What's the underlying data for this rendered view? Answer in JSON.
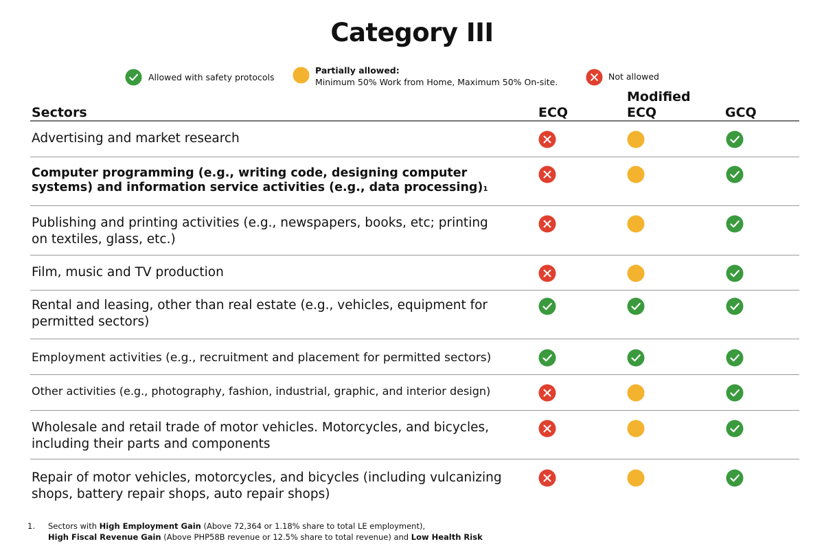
{
  "title": "Category III",
  "legend": {
    "allowed": "Allowed with safety protocols",
    "partial_title": "Partially allowed:",
    "partial_detail": "Minimum 50% Work from Home,  Maximum 50% On-site.",
    "not_allowed": "Not allowed"
  },
  "colors": {
    "allowed": "#3a9a3d",
    "partial": "#f3b32e",
    "not_allowed": "#e0402f"
  },
  "icons": {
    "allowed": "check-circle-icon",
    "partial": "partial-circle-icon",
    "not_allowed": "cross-circle-icon"
  },
  "headers": {
    "sectors": "Sectors",
    "ecq": "ECQ",
    "mecq_line1": "Modified",
    "mecq_line2": "ECQ",
    "gcq": "GCQ"
  },
  "rows": [
    {
      "line1": "Advertising and market research",
      "line2": "",
      "ecq": "not_allowed",
      "mecq": "partial",
      "gcq": "allowed"
    },
    {
      "line1": "Computer programming (e.g., writing code, designing computer",
      "line2": "systems)  and information service activities (e.g., data processing)",
      "footnote_mark": "1",
      "ecq": "not_allowed",
      "mecq": "partial",
      "gcq": "allowed"
    },
    {
      "line1": "Publishing and printing activities (e.g., newspapers, books, etc; printing",
      "line2": "on textiles, glass, etc.)",
      "ecq": "not_allowed",
      "mecq": "partial",
      "gcq": "allowed"
    },
    {
      "line1": "Film, music and TV production",
      "line2": "",
      "ecq": "not_allowed",
      "mecq": "partial",
      "gcq": "allowed"
    },
    {
      "line1": "Rental and leasing, other than real estate (e.g., vehicles, equipment for",
      "line2": "permitted sectors)",
      "ecq": "allowed",
      "mecq": "allowed",
      "gcq": "allowed"
    },
    {
      "line1": "Employment activities (e.g., recruitment and placement for permitted sectors)",
      "line2": "",
      "ecq": "allowed",
      "mecq": "allowed",
      "gcq": "allowed"
    },
    {
      "line1": "Other activities (e.g., photography, fashion, industrial, graphic, and interior design)",
      "line2": "",
      "ecq": "not_allowed",
      "mecq": "partial",
      "gcq": "allowed"
    },
    {
      "line1": "Wholesale and retail trade of motor vehicles. Motorcycles, and bicycles,",
      "line2": "including their parts and components",
      "ecq": "not_allowed",
      "mecq": "partial",
      "gcq": "allowed"
    },
    {
      "line1": "Repair of motor vehicles, motorcycles, and bicycles (including vulcanizing",
      "line2": "shops, battery repair shops, auto repair shops)",
      "ecq": "not_allowed",
      "mecq": "partial",
      "gcq": "allowed"
    }
  ],
  "footnote": {
    "number": "1.",
    "t1": "Sectors with ",
    "b1": "High Employment Gain",
    "t2": " (Above 72,364 or 1.18% share to total LE employment),",
    "b2": "High Fiscal Revenue Gain",
    "t3": " (Above PHP58B revenue or 12.5% share to total revenue) and ",
    "b3": "Low Health Risk"
  }
}
